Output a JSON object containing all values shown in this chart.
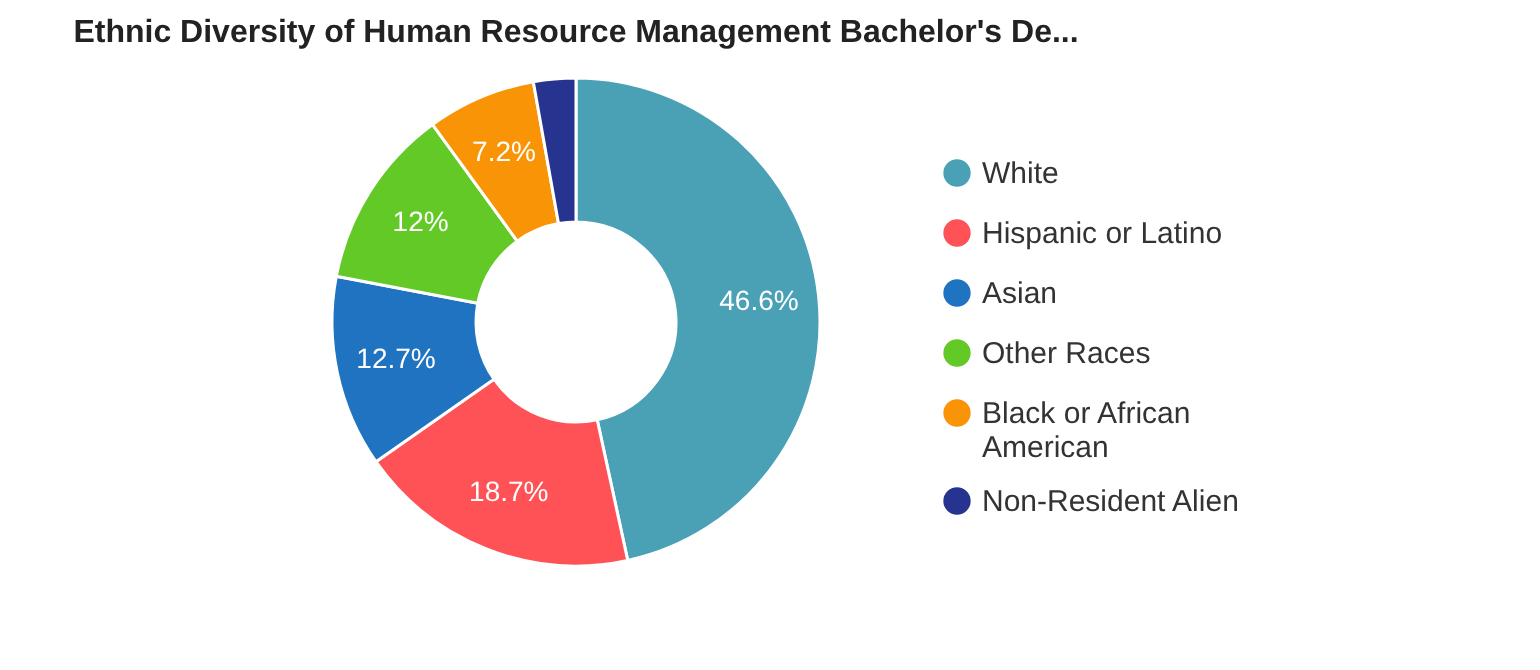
{
  "chart_data": {
    "type": "donut",
    "title": "Ethnic Diversity of Human Resource Management Bachelor's De...",
    "categories": [
      "White",
      "Hispanic or Latino",
      "Asian",
      "Other Races",
      "Black or African American",
      "Non-Resident Alien"
    ],
    "values": [
      46.6,
      18.7,
      12.7,
      12,
      7.2,
      2.8
    ],
    "value_labels": [
      "46.6%",
      "18.7%",
      "12.7%",
      "12%",
      "7.2%",
      null
    ],
    "colors": [
      "#4aa1b5",
      "#ff5257",
      "#1f73c0",
      "#63c926",
      "#f99406",
      "#263490"
    ],
    "legend": "right"
  }
}
